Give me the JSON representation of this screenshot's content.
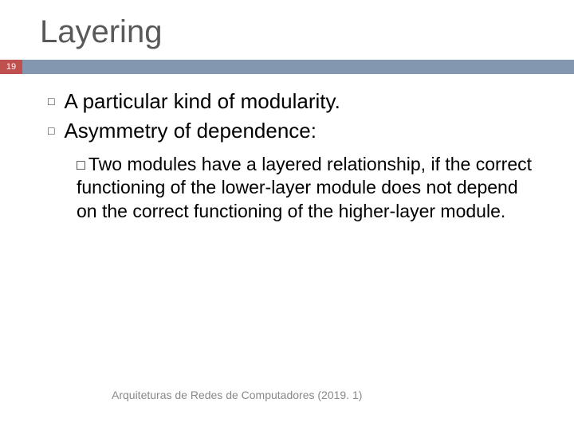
{
  "slide": {
    "title": "Layering",
    "page_number": "19",
    "bullets": [
      {
        "text": "A particular kind of modularity."
      },
      {
        "text": "Asymmetry of dependence:"
      }
    ],
    "sub_bullet_lead": "Two",
    "sub_bullet_rest": " modules have a layered relationship, if the correct functioning of the lower-layer module does not depend on the correct functioning of the higher-layer module.",
    "footer": "Arquiteturas de Redes de Computadores  (2019. 1)"
  },
  "colors": {
    "title_color": "#595959",
    "bar_accent": "#c0504d",
    "bar_main": "#8497b0",
    "text": "#000000",
    "footer": "#898989",
    "background": "#ffffff"
  },
  "typography": {
    "title_fontsize": 40,
    "body_fontsize": 26,
    "sub_fontsize": 23,
    "footer_fontsize": 14
  }
}
